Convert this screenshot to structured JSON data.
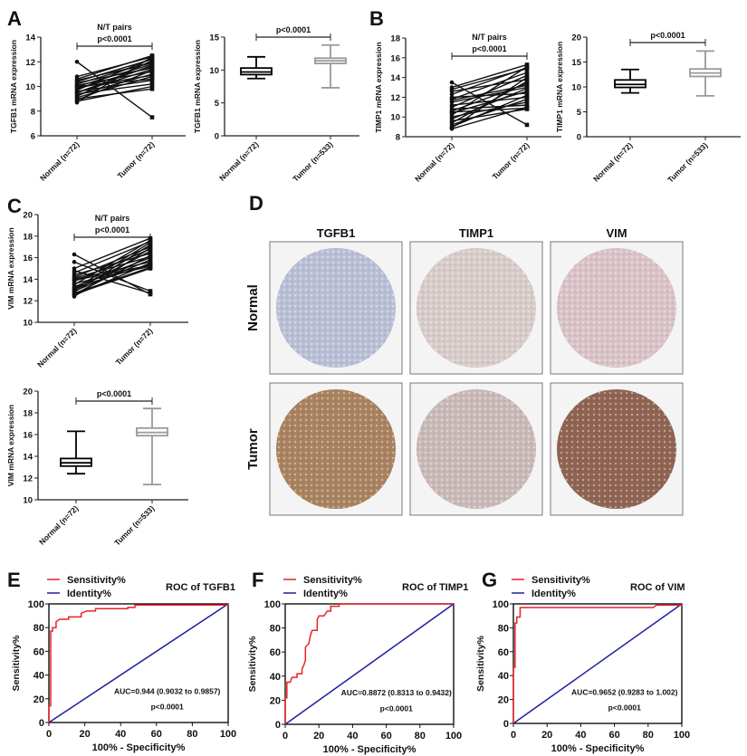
{
  "panel_labels": [
    "A",
    "B",
    "C",
    "D",
    "E",
    "F",
    "G"
  ],
  "ihc": {
    "columns": [
      "TGFB1",
      "TIMP1",
      "VIM"
    ],
    "rows": [
      "Normal",
      "Tumor"
    ],
    "stain_colors": {
      "Normal": [
        "#b9bfd6",
        "#d8ccca",
        "#d9c3c8"
      ],
      "Tumor": [
        "#a9825f",
        "#c9b9b8",
        "#8f6452"
      ]
    }
  },
  "chart_data": [
    {
      "id": "A-paired",
      "type": "line",
      "subtype": "paired",
      "title": "N/T pairs",
      "pvalue": "p<0.0001",
      "ylabel": "TGFB1 mRNA expression",
      "ylim": [
        6,
        14
      ],
      "yticks": [
        6,
        8,
        10,
        12,
        14
      ],
      "categories": [
        "Normal (n=72)",
        "Tumor (n=72)"
      ],
      "pairs": [
        [
          12.0,
          7.5
        ],
        [
          10.8,
          12.4
        ],
        [
          10.6,
          12.5
        ],
        [
          10.5,
          11.9
        ],
        [
          10.4,
          12.2
        ],
        [
          10.3,
          11.5
        ],
        [
          10.2,
          12.0
        ],
        [
          10.1,
          11.2
        ],
        [
          10.0,
          11.8
        ],
        [
          9.9,
          10.9
        ],
        [
          9.8,
          11.6
        ],
        [
          9.7,
          12.3
        ],
        [
          9.6,
          10.5
        ],
        [
          9.5,
          11.4
        ],
        [
          9.4,
          10.2
        ],
        [
          9.3,
          11.0
        ],
        [
          9.2,
          12.1
        ],
        [
          9.1,
          10.8
        ],
        [
          9.0,
          9.8
        ],
        [
          8.9,
          11.3
        ],
        [
          8.8,
          10.0
        ],
        [
          8.7,
          12.4
        ],
        [
          10.0,
          10.6
        ],
        [
          9.5,
          11.7
        ]
      ]
    },
    {
      "id": "A-box",
      "type": "box",
      "pvalue": "p<0.0001",
      "ylabel": "TGFB1 mRNA expression",
      "ylim": [
        0,
        15
      ],
      "yticks": [
        0,
        5,
        10,
        15
      ],
      "categories": [
        "Normal (n=72)",
        "Tumor (n=533)"
      ],
      "boxes": [
        {
          "min": 8.7,
          "q1": 9.3,
          "median": 9.7,
          "q3": 10.3,
          "max": 12.0
        },
        {
          "min": 7.3,
          "q1": 11.0,
          "median": 11.4,
          "q3": 11.8,
          "max": 13.8
        }
      ],
      "colors": [
        "#000000",
        "#999999"
      ]
    },
    {
      "id": "B-paired",
      "type": "line",
      "subtype": "paired",
      "title": "N/T pairs",
      "pvalue": "p<0.0001",
      "ylabel": "TIMP1 mRNA expression",
      "ylim": [
        8,
        18
      ],
      "yticks": [
        8,
        10,
        12,
        14,
        16,
        18
      ],
      "categories": [
        "Normal (n=72)",
        "Tumor (n=72)"
      ],
      "pairs": [
        [
          13.5,
          9.2
        ],
        [
          13.0,
          15.3
        ],
        [
          12.8,
          14.9
        ],
        [
          12.6,
          13.8
        ],
        [
          12.3,
          15.0
        ],
        [
          12.0,
          12.4
        ],
        [
          11.8,
          14.5
        ],
        [
          11.5,
          13.0
        ],
        [
          11.2,
          12.0
        ],
        [
          11.0,
          14.2
        ],
        [
          10.8,
          11.2
        ],
        [
          10.6,
          13.4
        ],
        [
          10.4,
          12.6
        ],
        [
          10.2,
          15.1
        ],
        [
          10.0,
          11.5
        ],
        [
          9.8,
          12.9
        ],
        [
          9.6,
          10.8
        ],
        [
          9.4,
          13.6
        ],
        [
          9.2,
          11.8
        ],
        [
          9.0,
          12.2
        ],
        [
          8.9,
          14.0
        ],
        [
          8.8,
          11.0
        ],
        [
          10.5,
          10.9
        ],
        [
          11.7,
          13.2
        ]
      ]
    },
    {
      "id": "B-box",
      "type": "box",
      "pvalue": "p<0.0001",
      "ylabel": "TIMP1 mRNA expression",
      "ylim": [
        0,
        20
      ],
      "yticks": [
        0,
        5,
        10,
        15,
        20
      ],
      "categories": [
        "Normal (n=72)",
        "Tumor (n=533)"
      ],
      "boxes": [
        {
          "min": 8.8,
          "q1": 9.9,
          "median": 10.5,
          "q3": 11.4,
          "max": 13.5
        },
        {
          "min": 8.2,
          "q1": 12.1,
          "median": 12.8,
          "q3": 13.6,
          "max": 17.2
        }
      ],
      "colors": [
        "#000000",
        "#999999"
      ]
    },
    {
      "id": "C-paired",
      "type": "line",
      "subtype": "paired",
      "title": "N/T pairs",
      "pvalue": "p<0.0001",
      "ylabel": "VIM mRNA expression",
      "ylim": [
        10,
        20
      ],
      "yticks": [
        10,
        12,
        14,
        16,
        18,
        20
      ],
      "categories": [
        "Normal (n=72)",
        "Tumor (n=72)"
      ],
      "pairs": [
        [
          16.3,
          12.6
        ],
        [
          15.6,
          12.9
        ],
        [
          14.8,
          12.7
        ],
        [
          15.0,
          17.8
        ],
        [
          14.6,
          17.5
        ],
        [
          14.4,
          16.4
        ],
        [
          14.2,
          17.0
        ],
        [
          14.0,
          15.6
        ],
        [
          13.8,
          16.8
        ],
        [
          13.6,
          15.2
        ],
        [
          13.5,
          17.6
        ],
        [
          13.3,
          16.0
        ],
        [
          13.2,
          15.4
        ],
        [
          13.0,
          16.6
        ],
        [
          12.9,
          15.8
        ],
        [
          12.8,
          17.2
        ],
        [
          12.7,
          15.1
        ],
        [
          12.6,
          16.2
        ],
        [
          12.5,
          15.5
        ],
        [
          12.4,
          16.9
        ],
        [
          13.9,
          15.3
        ],
        [
          14.1,
          16.1
        ],
        [
          13.1,
          17.4
        ],
        [
          12.6,
          15.0
        ]
      ]
    },
    {
      "id": "C-box",
      "type": "box",
      "pvalue": "p<0.0001",
      "ylabel": "VIM mRNA expression",
      "ylim": [
        10,
        20
      ],
      "yticks": [
        10,
        12,
        14,
        16,
        18,
        20
      ],
      "categories": [
        "Normal (n=72)",
        "Tumor (n=533)"
      ],
      "boxes": [
        {
          "min": 12.4,
          "q1": 13.1,
          "median": 13.4,
          "q3": 13.8,
          "max": 16.3
        },
        {
          "min": 11.4,
          "q1": 15.9,
          "median": 16.2,
          "q3": 16.6,
          "max": 18.4
        }
      ],
      "colors": [
        "#000000",
        "#999999"
      ]
    },
    {
      "id": "E-roc",
      "type": "line",
      "title": "ROC of TGFB1",
      "xlabel": "100% - Specificity%",
      "ylabel": "Sensitivity%",
      "xlim": [
        0,
        100
      ],
      "ylim": [
        0,
        100
      ],
      "ticks": [
        0,
        20,
        40,
        60,
        80,
        100
      ],
      "legend": [
        "Sensitivity%",
        "Identity%"
      ],
      "legend_position": "top-left",
      "colors": {
        "sensitivity": "#e8232a",
        "identity": "#1f1f9c"
      },
      "auc": "AUC=0.944 (0.9032 to 0.9857)",
      "pvalue": "p<0.0001",
      "series": [
        {
          "name": "Sensitivity%",
          "points": [
            [
              0,
              0
            ],
            [
              0,
              14
            ],
            [
              1,
              14
            ],
            [
              1,
              77
            ],
            [
              2,
              77
            ],
            [
              2,
              80
            ],
            [
              4,
              80
            ],
            [
              4,
              85
            ],
            [
              6,
              87
            ],
            [
              11,
              87
            ],
            [
              11,
              89
            ],
            [
              18,
              89
            ],
            [
              18,
              92
            ],
            [
              21,
              94
            ],
            [
              26,
              94
            ],
            [
              26,
              96
            ],
            [
              44,
              96
            ],
            [
              44,
              97
            ],
            [
              48,
              97
            ],
            [
              48,
              99
            ],
            [
              100,
              99
            ],
            [
              100,
              100
            ]
          ]
        },
        {
          "name": "Identity%",
          "points": [
            [
              0,
              0
            ],
            [
              100,
              100
            ]
          ]
        }
      ]
    },
    {
      "id": "F-roc",
      "type": "line",
      "title": "ROC of TIMP1",
      "xlabel": "100% - Specificity%",
      "ylabel": "Sensitivity%",
      "xlim": [
        0,
        100
      ],
      "ylim": [
        0,
        100
      ],
      "ticks": [
        0,
        20,
        40,
        60,
        80,
        100
      ],
      "legend": [
        "Sensitivity%",
        "Identity%"
      ],
      "legend_position": "top-left",
      "colors": {
        "sensitivity": "#e8232a",
        "identity": "#1f1f9c"
      },
      "auc": "AUC=0.8872 (0.8313 to 0.9432)",
      "pvalue": "p<0.0001",
      "series": [
        {
          "name": "Sensitivity%",
          "points": [
            [
              0,
              0
            ],
            [
              0,
              22
            ],
            [
              1,
              22
            ],
            [
              1,
              35
            ],
            [
              3,
              35
            ],
            [
              4,
              39
            ],
            [
              7,
              39
            ],
            [
              7,
              42
            ],
            [
              10,
              42
            ],
            [
              10,
              46
            ],
            [
              11,
              49
            ],
            [
              12,
              53
            ],
            [
              12,
              64
            ],
            [
              14,
              67
            ],
            [
              15,
              74
            ],
            [
              16,
              78
            ],
            [
              19,
              78
            ],
            [
              19,
              87
            ],
            [
              20,
              90
            ],
            [
              23,
              90
            ],
            [
              25,
              94
            ],
            [
              27,
              94
            ],
            [
              27,
              98
            ],
            [
              32,
              98
            ],
            [
              32,
              100
            ],
            [
              100,
              100
            ]
          ]
        },
        {
          "name": "Identity%",
          "points": [
            [
              0,
              0
            ],
            [
              100,
              100
            ]
          ]
        }
      ]
    },
    {
      "id": "G-roc",
      "type": "line",
      "title": "ROC of VIM",
      "xlabel": "100% - Specificity%",
      "ylabel": "Sensitivity%",
      "xlim": [
        0,
        100
      ],
      "ylim": [
        0,
        100
      ],
      "ticks": [
        0,
        20,
        40,
        60,
        80,
        100
      ],
      "legend": [
        "Sensitivity%",
        "Identity%"
      ],
      "legend_position": "top-left",
      "colors": {
        "sensitivity": "#e8232a",
        "identity": "#1f1f9c"
      },
      "auc": "AUC=0.9652 (0.9283 to 1.002)",
      "pvalue": "p<0.0001",
      "series": [
        {
          "name": "Sensitivity%",
          "points": [
            [
              0,
              0
            ],
            [
              0,
              47
            ],
            [
              1,
              47
            ],
            [
              1,
              84
            ],
            [
              2,
              84
            ],
            [
              2,
              89
            ],
            [
              4,
              89
            ],
            [
              4,
              97
            ],
            [
              83,
              97
            ],
            [
              85,
              99
            ],
            [
              100,
              99
            ],
            [
              100,
              100
            ]
          ]
        },
        {
          "name": "Identity%",
          "points": [
            [
              0,
              0
            ],
            [
              100,
              100
            ]
          ]
        }
      ]
    }
  ]
}
